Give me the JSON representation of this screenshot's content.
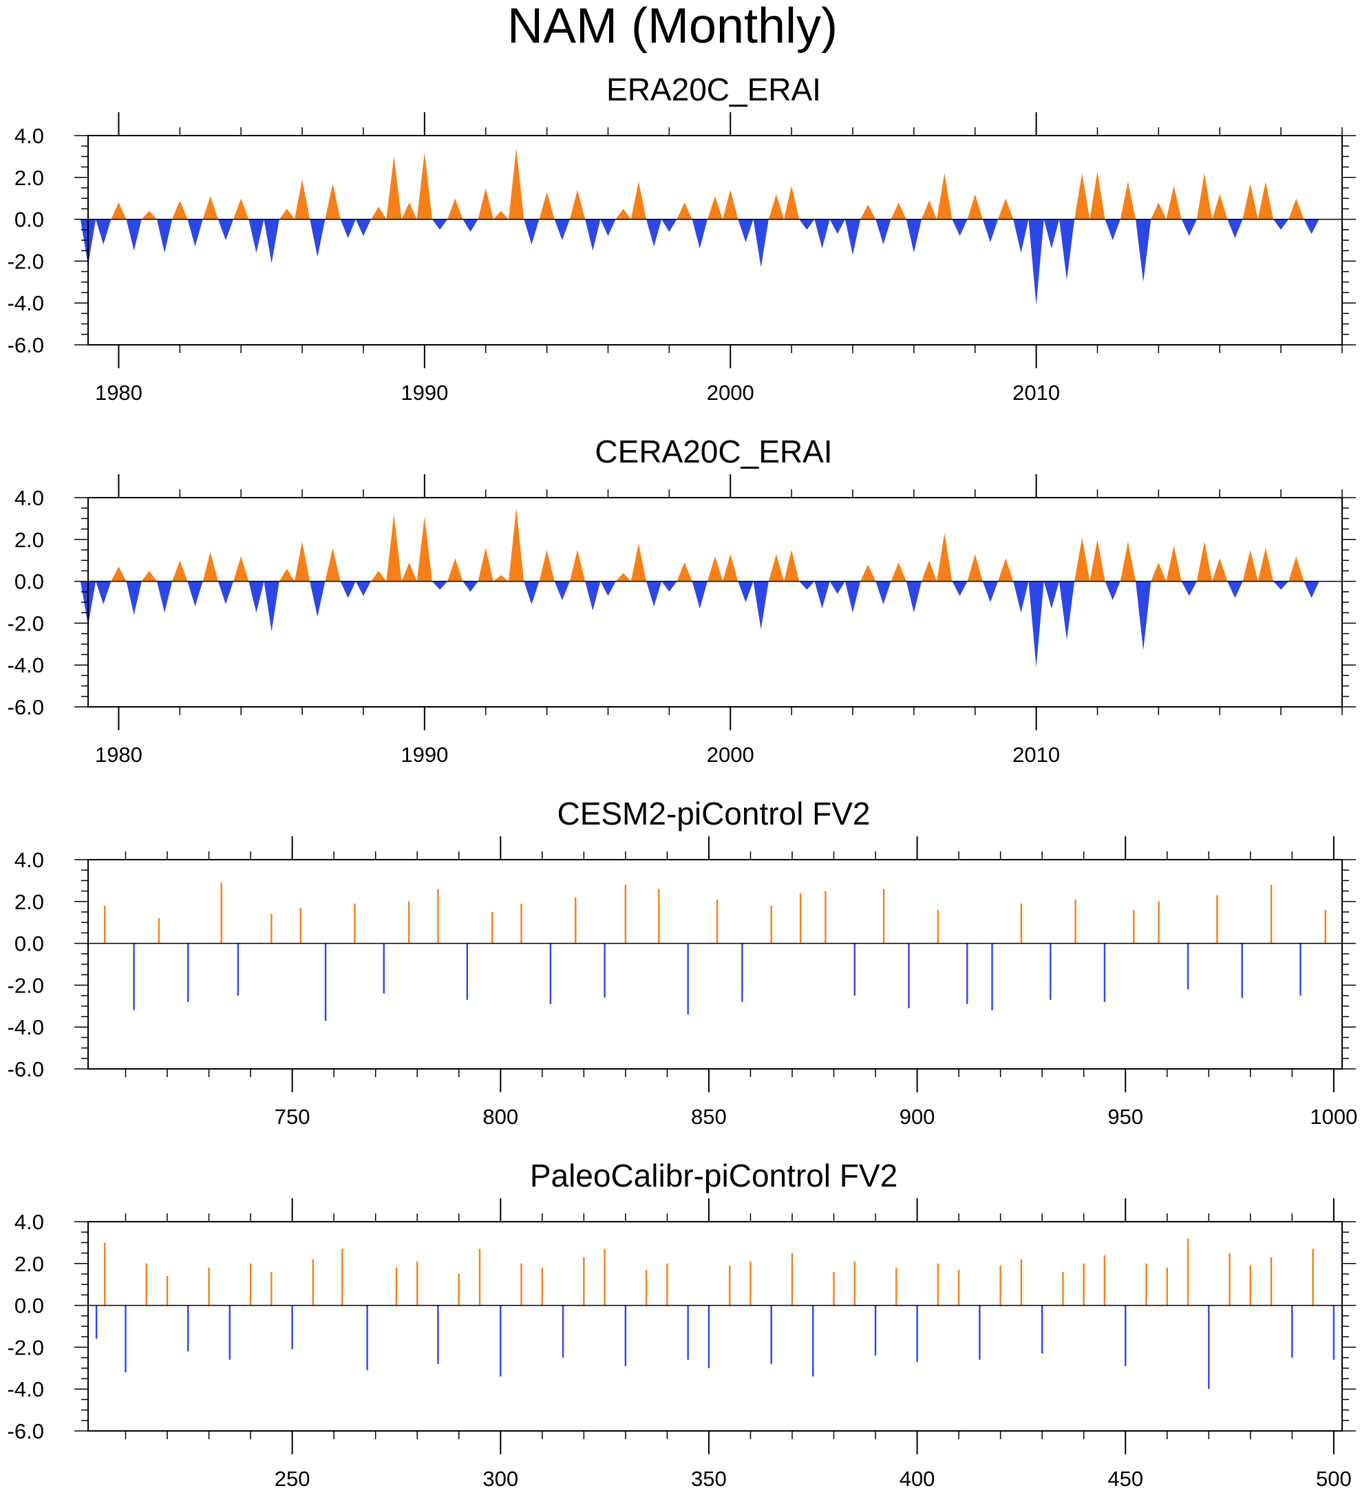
{
  "figure": {
    "title": "NAM (Monthly)"
  },
  "colors": {
    "positive": "#f77f18",
    "negative": "#2c47e8",
    "axis": "#000000"
  },
  "chart_data": [
    {
      "type": "area",
      "title": "ERA20C_ERAI",
      "xlabel": "",
      "ylabel": "",
      "xlim": [
        1979.0,
        2020.0
      ],
      "ylim": [
        -6.0,
        4.0
      ],
      "yticks": [
        4.0,
        2.0,
        0.0,
        -2.0,
        -4.0,
        -6.0
      ],
      "ytick_labels": [
        "4.0",
        "2.0",
        "0.0",
        "-2.0",
        "-4.0",
        "-6.0"
      ],
      "xticks": [
        1980,
        1990,
        2000,
        2010
      ],
      "xtick_labels": [
        "1980",
        "1990",
        "2000",
        "2010"
      ],
      "x_minor_step": 2,
      "fill_positive_color": "#f77f18",
      "fill_negative_color": "#2c47e8",
      "x": [
        1979.0,
        1979.5,
        1980.0,
        1980.5,
        1981.0,
        1981.5,
        1982.0,
        1982.5,
        1983.0,
        1983.5,
        1984.0,
        1984.5,
        1985.0,
        1985.5,
        1986.0,
        1986.5,
        1987.0,
        1987.5,
        1988.0,
        1988.5,
        1989.0,
        1989.5,
        1990.0,
        1990.5,
        1991.0,
        1991.5,
        1992.0,
        1992.5,
        1993.0,
        1993.5,
        1994.0,
        1994.5,
        1995.0,
        1995.5,
        1996.0,
        1996.5,
        1997.0,
        1997.5,
        1998.0,
        1998.5,
        1999.0,
        1999.5,
        2000.0,
        2000.5,
        2001.0,
        2001.5,
        2002.0,
        2002.5,
        2003.0,
        2003.5,
        2004.0,
        2004.5,
        2005.0,
        2005.5,
        2006.0,
        2006.5,
        2007.0,
        2007.5,
        2008.0,
        2008.5,
        2009.0,
        2009.5,
        2010.0,
        2010.5,
        2011.0,
        2011.5,
        2012.0,
        2012.5,
        2013.0,
        2013.5,
        2014.0,
        2014.5,
        2015.0,
        2015.5,
        2016.0,
        2016.5,
        2017.0,
        2017.5,
        2018.0,
        2018.5,
        2019.0
      ],
      "values": [
        -2.2,
        -1.2,
        0.8,
        -1.5,
        0.4,
        -1.6,
        0.9,
        -1.3,
        1.1,
        -1.0,
        1.0,
        -1.6,
        -2.1,
        0.5,
        1.9,
        -1.8,
        1.7,
        -0.9,
        -0.8,
        0.6,
        3.0,
        0.8,
        3.2,
        -0.5,
        1.0,
        -0.6,
        1.5,
        0.4,
        3.4,
        -1.2,
        1.3,
        -1.0,
        1.4,
        -1.5,
        -0.8,
        0.5,
        1.8,
        -1.3,
        -0.6,
        0.8,
        -1.4,
        1.1,
        1.4,
        -1.1,
        -2.3,
        1.2,
        1.6,
        -0.5,
        -1.4,
        -0.7,
        -1.7,
        0.7,
        -1.2,
        0.8,
        -1.6,
        0.9,
        2.2,
        -0.8,
        1.2,
        -1.1,
        1.0,
        -1.6,
        -4.1,
        -1.4,
        -2.9,
        2.2,
        2.3,
        -1.0,
        1.8,
        -3.0,
        0.8,
        1.6,
        -0.8,
        2.2,
        1.2,
        -0.9,
        1.7,
        1.8,
        -0.5,
        1.0,
        -0.7
      ]
    },
    {
      "type": "area",
      "title": "CERA20C_ERAI",
      "xlabel": "",
      "ylabel": "",
      "xlim": [
        1979.0,
        2020.0
      ],
      "ylim": [
        -6.0,
        4.0
      ],
      "yticks": [
        4.0,
        2.0,
        0.0,
        -2.0,
        -4.0,
        -6.0
      ],
      "ytick_labels": [
        "4.0",
        "2.0",
        "0.0",
        "-2.0",
        "-4.0",
        "-6.0"
      ],
      "xticks": [
        1980,
        1990,
        2000,
        2010
      ],
      "xtick_labels": [
        "1980",
        "1990",
        "2000",
        "2010"
      ],
      "x_minor_step": 2,
      "fill_positive_color": "#f77f18",
      "fill_negative_color": "#2c47e8",
      "x": [
        1979.0,
        1979.5,
        1980.0,
        1980.5,
        1981.0,
        1981.5,
        1982.0,
        1982.5,
        1983.0,
        1983.5,
        1984.0,
        1984.5,
        1985.0,
        1985.5,
        1986.0,
        1986.5,
        1987.0,
        1987.5,
        1988.0,
        1988.5,
        1989.0,
        1989.5,
        1990.0,
        1990.5,
        1991.0,
        1991.5,
        1992.0,
        1992.5,
        1993.0,
        1993.5,
        1994.0,
        1994.5,
        1995.0,
        1995.5,
        1996.0,
        1996.5,
        1997.0,
        1997.5,
        1998.0,
        1998.5,
        1999.0,
        1999.5,
        2000.0,
        2000.5,
        2001.0,
        2001.5,
        2002.0,
        2002.5,
        2003.0,
        2003.5,
        2004.0,
        2004.5,
        2005.0,
        2005.5,
        2006.0,
        2006.5,
        2007.0,
        2007.5,
        2008.0,
        2008.5,
        2009.0,
        2009.5,
        2010.0,
        2010.5,
        2011.0,
        2011.5,
        2012.0,
        2012.5,
        2013.0,
        2013.5,
        2014.0,
        2014.5,
        2015.0,
        2015.5,
        2016.0,
        2016.5,
        2017.0,
        2017.5,
        2018.0,
        2018.5,
        2019.0
      ],
      "values": [
        -2.1,
        -1.1,
        0.7,
        -1.6,
        0.5,
        -1.5,
        1.0,
        -1.2,
        1.4,
        -1.1,
        1.2,
        -1.5,
        -2.4,
        0.6,
        1.9,
        -1.7,
        1.6,
        -0.8,
        -0.7,
        0.5,
        3.2,
        0.9,
        3.1,
        -0.4,
        1.1,
        -0.5,
        1.6,
        0.3,
        3.5,
        -1.1,
        1.5,
        -0.9,
        1.5,
        -1.4,
        -0.7,
        0.4,
        1.8,
        -1.2,
        -0.5,
        0.9,
        -1.3,
        1.2,
        1.3,
        -1.0,
        -2.3,
        1.3,
        1.5,
        -0.4,
        -1.3,
        -0.6,
        -1.5,
        0.8,
        -1.1,
        0.9,
        -1.5,
        1.0,
        2.3,
        -0.7,
        1.3,
        -1.0,
        1.1,
        -1.5,
        -4.1,
        -1.3,
        -2.8,
        2.1,
        2.0,
        -0.9,
        1.9,
        -3.3,
        0.9,
        1.7,
        -0.7,
        1.9,
        1.1,
        -0.8,
        1.5,
        1.6,
        -0.4,
        1.2,
        -0.8
      ]
    },
    {
      "type": "bar",
      "title": "CESM2-piControl FV2",
      "xlabel": "",
      "ylabel": "",
      "xlim": [
        701.0,
        1002.0
      ],
      "ylim": [
        -6.0,
        4.0
      ],
      "yticks": [
        4.0,
        2.0,
        0.0,
        -2.0,
        -4.0,
        -6.0
      ],
      "ytick_labels": [
        "4.0",
        "2.0",
        "0.0",
        "-2.0",
        "-4.0",
        "-6.0"
      ],
      "xticks": [
        750,
        800,
        850,
        900,
        950,
        1000
      ],
      "xtick_labels": [
        "750",
        "800",
        "850",
        "900",
        "950",
        "1000"
      ],
      "x_minor_step": 10,
      "fill_positive_color": "#f77f18",
      "fill_negative_color": "#2c47e8",
      "x": [
        705,
        712,
        718,
        725,
        733,
        737,
        745,
        752,
        758,
        765,
        772,
        778,
        785,
        792,
        798,
        805,
        812,
        818,
        825,
        830,
        838,
        845,
        852,
        858,
        865,
        872,
        878,
        885,
        892,
        898,
        905,
        912,
        918,
        925,
        932,
        938,
        945,
        952,
        958,
        965,
        972,
        978,
        985,
        992,
        998
      ],
      "values": [
        1.8,
        -3.2,
        1.2,
        -2.8,
        2.9,
        -2.5,
        1.4,
        1.7,
        -3.7,
        1.9,
        -2.4,
        2.0,
        2.6,
        -2.7,
        1.5,
        1.9,
        -2.9,
        2.2,
        -2.6,
        2.8,
        2.6,
        -3.4,
        2.1,
        -2.8,
        1.8,
        2.4,
        2.5,
        -2.5,
        2.6,
        -3.1,
        1.6,
        -2.9,
        -3.2,
        1.9,
        -2.7,
        2.1,
        -2.8,
        1.6,
        2.0,
        -2.2,
        2.3,
        -2.6,
        2.8,
        -2.5,
        1.6
      ]
    },
    {
      "type": "bar",
      "title": "PaleoCalibr-piControl FV2",
      "xlabel": "",
      "ylabel": "",
      "xlim": [
        201.0,
        502.0
      ],
      "ylim": [
        -6.0,
        4.0
      ],
      "yticks": [
        4.0,
        2.0,
        0.0,
        -2.0,
        -4.0,
        -6.0
      ],
      "ytick_labels": [
        "4.0",
        "2.0",
        "0.0",
        "-2.0",
        "-4.0",
        "-6.0"
      ],
      "xticks": [
        250,
        300,
        350,
        400,
        450,
        500
      ],
      "xtick_labels": [
        "250",
        "300",
        "350",
        "400",
        "450",
        "500"
      ],
      "x_minor_step": 10,
      "fill_positive_color": "#f77f18",
      "fill_negative_color": "#2c47e8",
      "x": [
        203,
        205,
        210,
        215,
        220,
        225,
        230,
        235,
        240,
        245,
        250,
        255,
        262,
        268,
        275,
        280,
        285,
        290,
        295,
        300,
        305,
        310,
        315,
        320,
        325,
        330,
        335,
        340,
        345,
        350,
        355,
        360,
        365,
        370,
        375,
        380,
        385,
        390,
        395,
        400,
        405,
        410,
        415,
        420,
        425,
        430,
        435,
        440,
        445,
        450,
        455,
        460,
        465,
        470,
        475,
        480,
        485,
        490,
        495,
        500
      ],
      "values": [
        -1.6,
        3.0,
        -3.2,
        2.0,
        1.4,
        -2.2,
        1.8,
        -2.6,
        2.0,
        1.6,
        -2.1,
        2.2,
        2.7,
        -3.1,
        1.8,
        2.1,
        -2.8,
        1.5,
        2.7,
        -3.4,
        2.0,
        1.8,
        -2.5,
        2.3,
        2.7,
        -2.9,
        1.7,
        2.0,
        -2.6,
        -3.0,
        1.9,
        2.1,
        -2.8,
        2.5,
        -3.4,
        1.6,
        2.1,
        -2.4,
        1.8,
        -2.7,
        2.0,
        1.7,
        -2.6,
        1.9,
        2.2,
        -2.3,
        1.6,
        2.0,
        2.4,
        -2.9,
        2.0,
        1.8,
        3.2,
        -4.0,
        2.5,
        1.9,
        2.3,
        -2.5,
        2.7,
        -2.6
      ]
    }
  ]
}
